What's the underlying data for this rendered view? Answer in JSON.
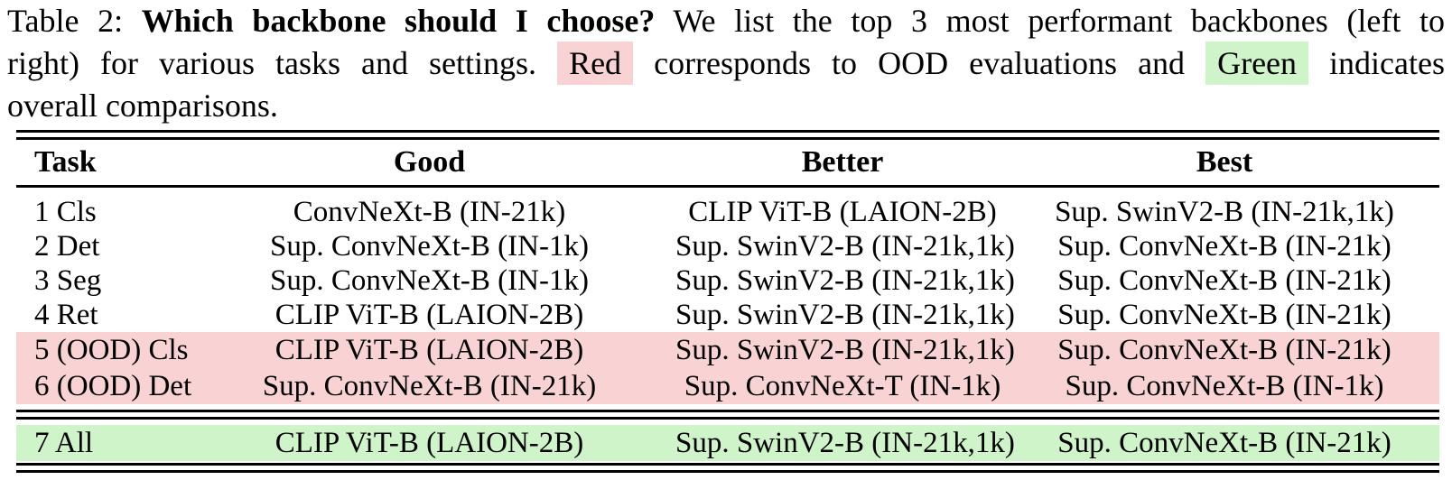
{
  "colors": {
    "ood_highlight": "#f9d3d3",
    "overall_highlight": "#d0f4c9",
    "rule": "#000000"
  },
  "caption": {
    "lines": [
      {
        "justify": true,
        "segments": [
          {
            "text": "Table 2: "
          },
          {
            "text": "Which backbone should I choose?",
            "bold": true
          },
          {
            "text": " We list the top 3 most performant backbones (left to"
          }
        ]
      },
      {
        "justify": true,
        "segments": [
          {
            "text": "right) for various tasks and settings. "
          },
          {
            "text": "Red",
            "highlight": "red"
          },
          {
            "text": " corresponds to OOD evaluations and "
          },
          {
            "text": "Green",
            "highlight": "green"
          },
          {
            "text": " indicates"
          }
        ]
      },
      {
        "justify": false,
        "segments": [
          {
            "text": "overall comparisons."
          }
        ]
      }
    ]
  },
  "table": {
    "columns": [
      "Task",
      "Good",
      "Better",
      "Best"
    ],
    "rows": [
      {
        "task": "1 Cls",
        "good": "ConvNeXt-B (IN-21k)",
        "better": "CLIP ViT-B (LAION-2B)",
        "best": "Sup. SwinV2-B (IN-21k,1k)",
        "highlight": "none"
      },
      {
        "task": "2 Det",
        "good": "Sup. ConvNeXt-B (IN-1k)",
        "better": "Sup. SwinV2-B (IN-21k,1k)",
        "best": "Sup. ConvNeXt-B (IN-21k)",
        "highlight": "none"
      },
      {
        "task": "3 Seg",
        "good": "Sup. ConvNeXt-B (IN-1k)",
        "better": "Sup. SwinV2-B (IN-21k,1k)",
        "best": "Sup. ConvNeXt-B (IN-21k)",
        "highlight": "none"
      },
      {
        "task": "4 Ret",
        "good": "CLIP ViT-B (LAION-2B)",
        "better": "Sup. SwinV2-B (IN-21k,1k)",
        "best": "Sup. ConvNeXt-B (IN-21k)",
        "highlight": "none"
      },
      {
        "task": "5 (OOD) Cls",
        "good": "CLIP ViT-B (LAION-2B)",
        "better": "Sup. SwinV2-B (IN-21k,1k)",
        "best": "Sup. ConvNeXt-B (IN-21k)",
        "highlight": "red"
      },
      {
        "task": "6 (OOD) Det",
        "good": "Sup. ConvNeXt-B (IN-21k)",
        "better": "Sup. ConvNeXt-T (IN-1k)",
        "best": "Sup. ConvNeXt-B (IN-1k)",
        "highlight": "red"
      },
      {
        "task": "7 All",
        "good": "CLIP ViT-B (LAION-2B)",
        "better": "Sup. SwinV2-B (IN-21k,1k)",
        "best": "Sup. ConvNeXt-B (IN-21k)",
        "highlight": "green"
      }
    ]
  }
}
